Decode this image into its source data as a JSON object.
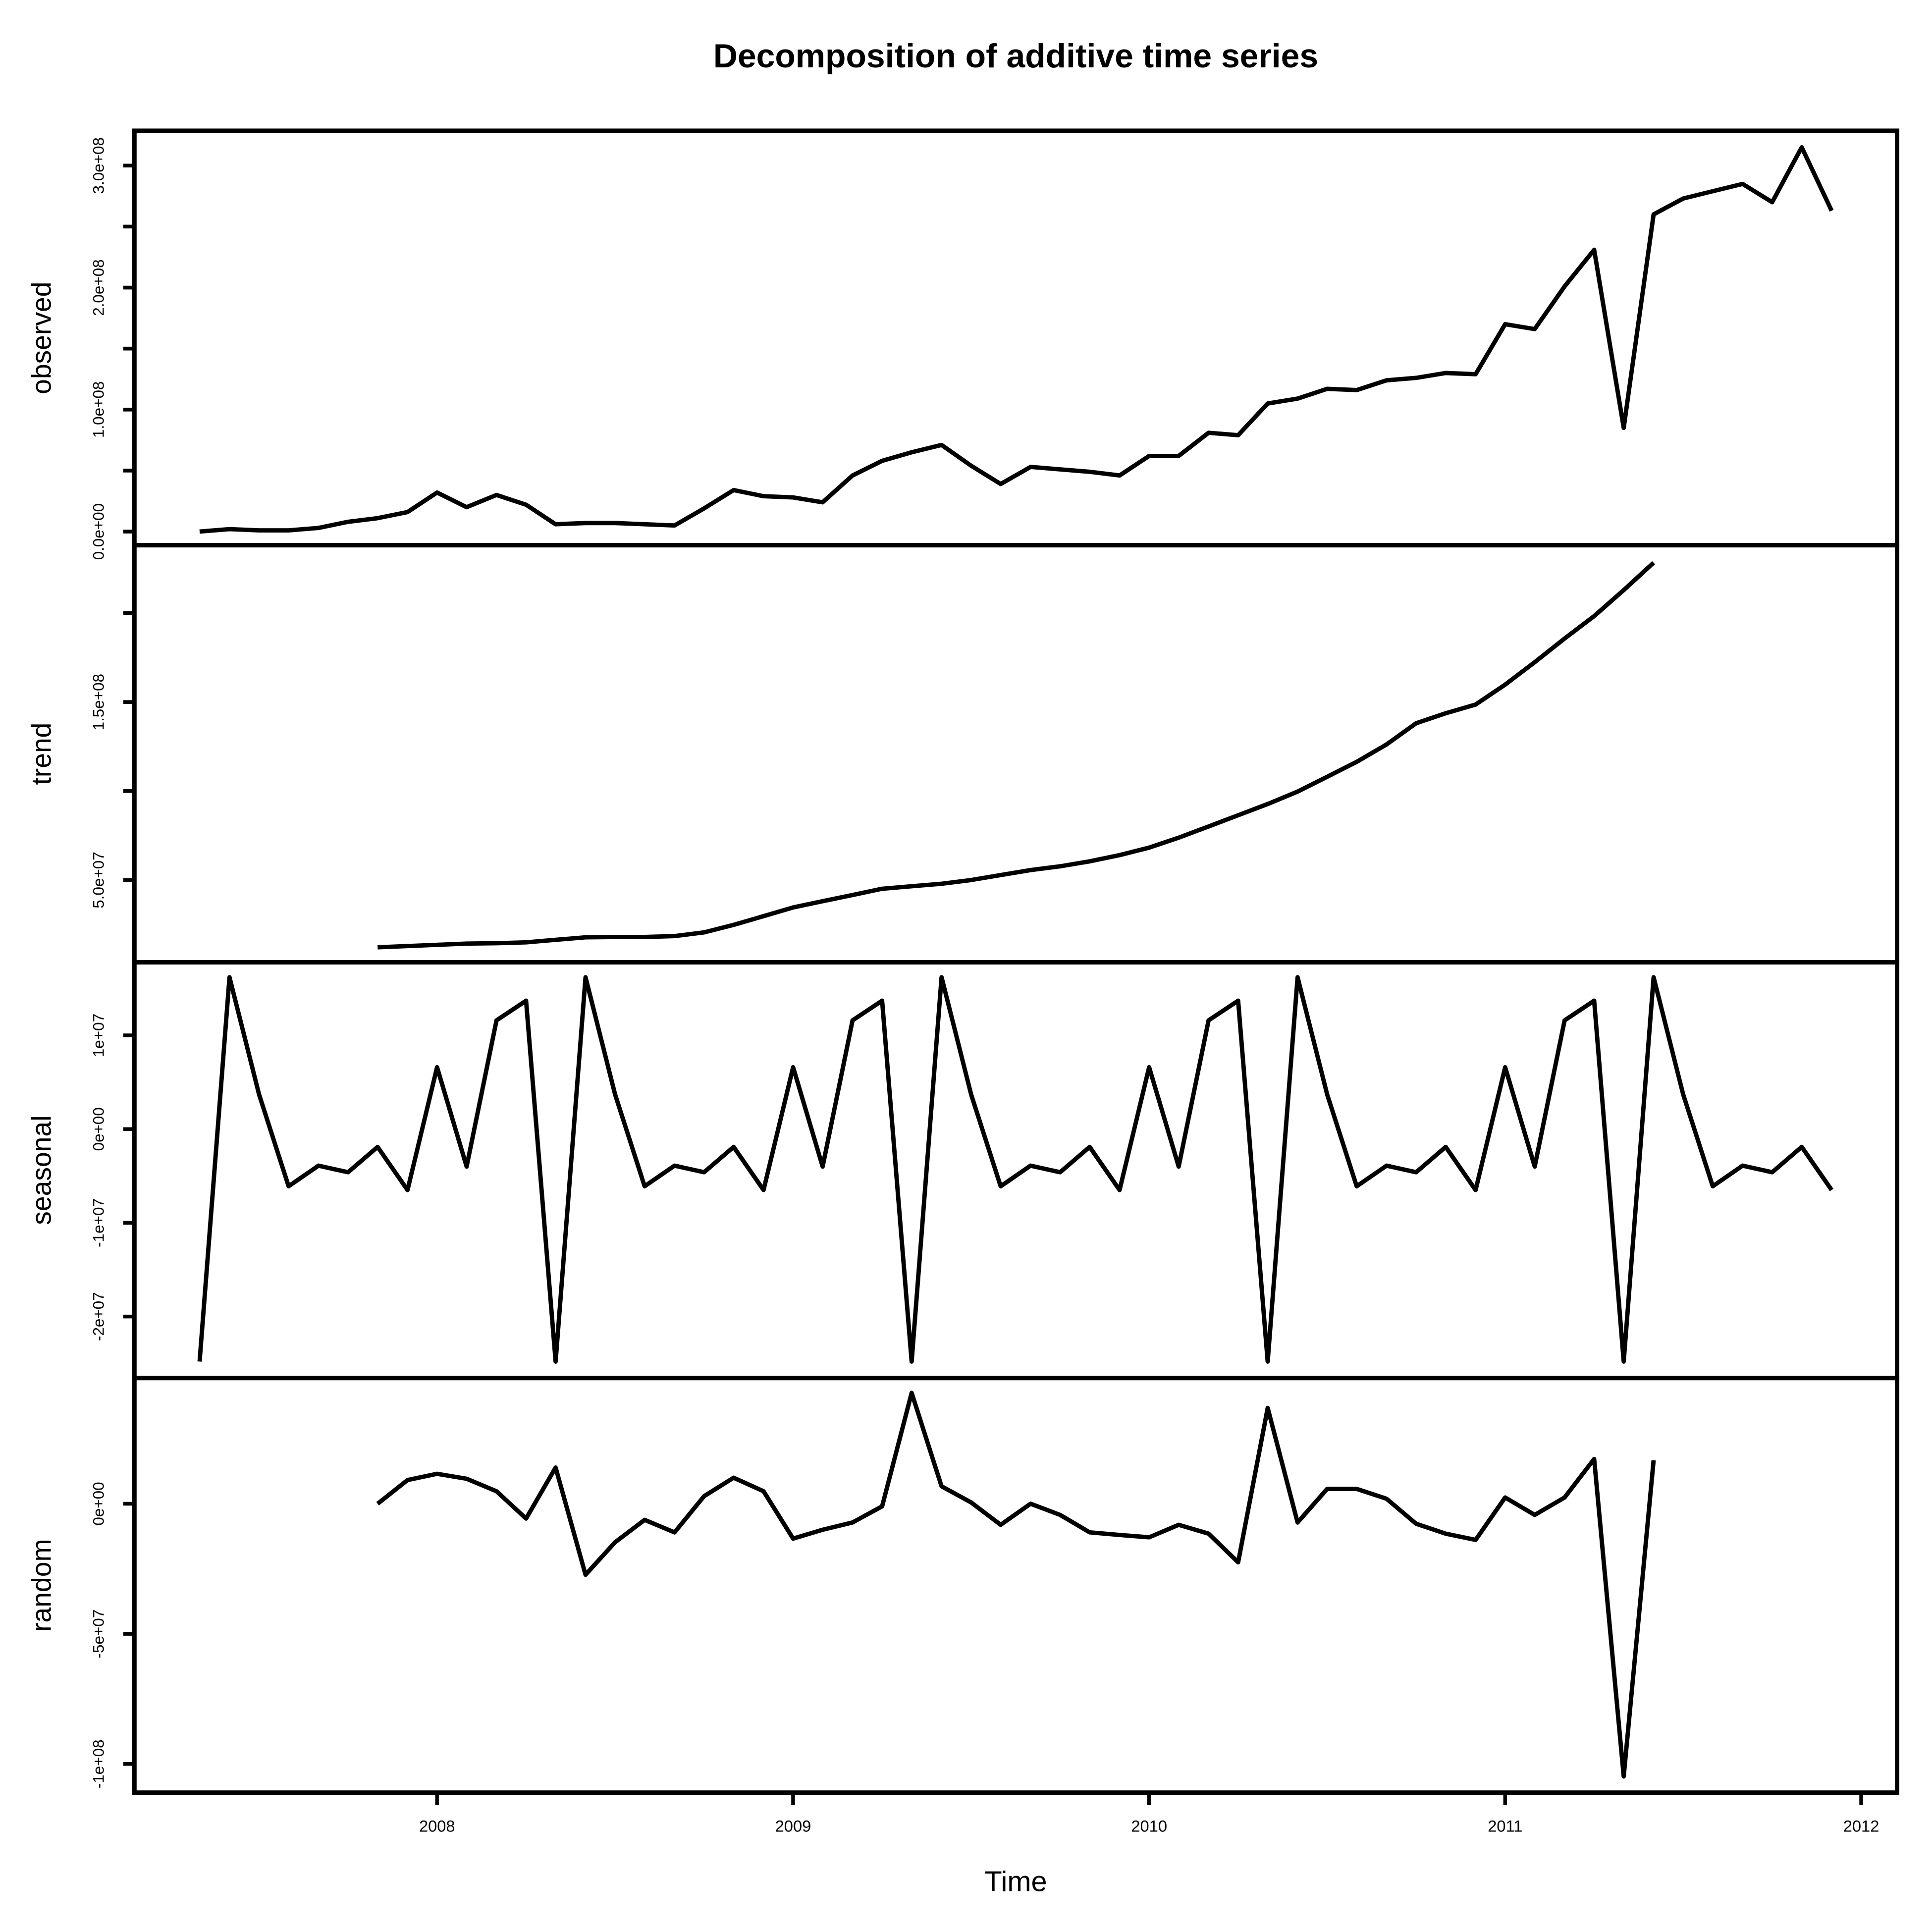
{
  "chart_data": [
    {
      "type": "line",
      "title": "Decomposition of additive time series",
      "ylabel": "observed",
      "color": "#000000",
      "x": [
        2007.333,
        2007.417,
        2007.5,
        2007.583,
        2007.667,
        2007.75,
        2007.833,
        2007.917,
        2008,
        2008.083,
        2008.167,
        2008.25,
        2008.333,
        2008.417,
        2008.5,
        2008.583,
        2008.667,
        2008.75,
        2008.833,
        2008.917,
        2009,
        2009.083,
        2009.167,
        2009.25,
        2009.333,
        2009.417,
        2009.5,
        2009.583,
        2009.667,
        2009.75,
        2009.833,
        2009.917,
        2010,
        2010.083,
        2010.167,
        2010.25,
        2010.333,
        2010.417,
        2010.5,
        2010.583,
        2010.667,
        2010.75,
        2010.833,
        2010.917,
        2011,
        2011.083,
        2011.167,
        2011.25,
        2011.333,
        2011.417,
        2011.5,
        2011.583,
        2011.667,
        2011.75,
        2011.833,
        2011.917
      ],
      "values": [
        0,
        2000000,
        1000000,
        1000000,
        3000000,
        8000000,
        11000000,
        16000000,
        32000000,
        20000000,
        30000000,
        22000000,
        6000000,
        7000000,
        7000000,
        6000000,
        5000000,
        19000000,
        34000000,
        29000000,
        28000000,
        24000000,
        46000000,
        58000000,
        65000000,
        71000000,
        54000000,
        39000000,
        53000000,
        51000000,
        49000000,
        46000000,
        62000000,
        62000000,
        81000000,
        79000000,
        105000000,
        109000000,
        117000000,
        116000000,
        124000000,
        126000000,
        130000000,
        129000000,
        170000000,
        166000000,
        201000000,
        231000000,
        85000000,
        260000000,
        273000000,
        279000000,
        285000000,
        270000000,
        315000000,
        263000000
      ],
      "xlim": [
        2007.15,
        2012.101
      ],
      "ylim": [
        -11200000,
        328600000
      ],
      "yticks": [
        {
          "value": 0,
          "label": "0.0e+00"
        },
        {
          "value": 100000000,
          "label": "1.0e+08"
        },
        {
          "value": 200000000,
          "label": "2.0e+08"
        },
        {
          "value": 300000000,
          "label": "3.0e+08"
        }
      ],
      "yminorticks": [
        50000000,
        150000000,
        250000000
      ]
    },
    {
      "type": "line",
      "ylabel": "trend",
      "color": "#000000",
      "x": [
        2007.333,
        2007.417,
        2007.5,
        2007.583,
        2007.667,
        2007.75,
        2007.833,
        2007.917,
        2008,
        2008.083,
        2008.167,
        2008.25,
        2008.333,
        2008.417,
        2008.5,
        2008.583,
        2008.667,
        2008.75,
        2008.833,
        2008.917,
        2009,
        2009.083,
        2009.167,
        2009.25,
        2009.333,
        2009.417,
        2009.5,
        2009.583,
        2009.667,
        2009.75,
        2009.833,
        2009.917,
        2010,
        2010.083,
        2010.167,
        2010.25,
        2010.333,
        2010.417,
        2010.5,
        2010.583,
        2010.667,
        2010.75,
        2010.833,
        2010.917,
        2011,
        2011.083,
        2011.167,
        2011.25,
        2011.333,
        2011.417,
        2011.5,
        2011.583,
        2011.667,
        2011.75,
        2011.833,
        2011.917
      ],
      "values": [
        null,
        null,
        null,
        null,
        null,
        null,
        12200000,
        12900000,
        13600000,
        14300000,
        14500000,
        15000000,
        16400000,
        17800000,
        18000000,
        18000000,
        18500000,
        20600000,
        24800000,
        29700000,
        34600000,
        38100000,
        41600000,
        45100000,
        46500000,
        47900000,
        50000000,
        52800000,
        55600000,
        57700000,
        60500000,
        64000000,
        68200000,
        73800000,
        80100000,
        86400000,
        92700000,
        99700000,
        108000000,
        116400000,
        126200000,
        138100000,
        143700000,
        148600000,
        159800000,
        172400000,
        185700000,
        198300000,
        212900000,
        228300000,
        null,
        null,
        null,
        null,
        null,
        null
      ],
      "xlim": [
        2007.15,
        2012.101
      ],
      "ylim": [
        3800000,
        238100000
      ],
      "yticks": [
        {
          "value": 50000000,
          "label": "5.0e+07"
        },
        {
          "value": 150000000,
          "label": "1.5e+08"
        }
      ],
      "yminorticks": [
        100000000,
        200000000
      ]
    },
    {
      "type": "line",
      "ylabel": "seasonal",
      "color": "#000000",
      "x": [
        2007.333,
        2007.417,
        2007.5,
        2007.583,
        2007.667,
        2007.75,
        2007.833,
        2007.917,
        2008,
        2008.083,
        2008.167,
        2008.25,
        2008.333,
        2008.417,
        2008.5,
        2008.583,
        2008.667,
        2008.75,
        2008.833,
        2008.917,
        2009,
        2009.083,
        2009.167,
        2009.25,
        2009.333,
        2009.417,
        2009.5,
        2009.583,
        2009.667,
        2009.75,
        2009.833,
        2009.917,
        2010,
        2010.083,
        2010.167,
        2010.25,
        2010.333,
        2010.417,
        2010.5,
        2010.583,
        2010.667,
        2010.75,
        2010.833,
        2010.917,
        2011,
        2011.083,
        2011.167,
        2011.25,
        2011.333,
        2011.417,
        2011.5,
        2011.583,
        2011.667,
        2011.75,
        2011.833,
        2011.917
      ],
      "values": [
        -24800000,
        16200000,
        3700000,
        -6100000,
        -3900000,
        -4600000,
        -1900000,
        -6500000,
        6600000,
        -4000000,
        11600000,
        13700000,
        -24800000,
        16200000,
        3700000,
        -6100000,
        -3900000,
        -4600000,
        -1900000,
        -6500000,
        6600000,
        -4000000,
        11600000,
        13700000,
        -24800000,
        16200000,
        3700000,
        -6100000,
        -3900000,
        -4600000,
        -1900000,
        -6500000,
        6600000,
        -4000000,
        11600000,
        13700000,
        -24800000,
        16200000,
        3700000,
        -6100000,
        -3900000,
        -4600000,
        -1900000,
        -6500000,
        6600000,
        -4000000,
        11600000,
        13700000,
        -24800000,
        16200000,
        3700000,
        -6100000,
        -3900000,
        -4600000,
        -1900000,
        -6500000
      ],
      "xlim": [
        2007.15,
        2012.101
      ],
      "ylim": [
        -26560000,
        17800000
      ],
      "yticks": [
        {
          "value": -20000000,
          "label": "-2e+07"
        },
        {
          "value": -10000000,
          "label": "-1e+07"
        },
        {
          "value": 0,
          "label": "0e+00"
        },
        {
          "value": 10000000,
          "label": "1e+07"
        }
      ]
    },
    {
      "type": "line",
      "ylabel": "random",
      "xlabel": "Time",
      "color": "#000000",
      "x": [
        2007.333,
        2007.417,
        2007.5,
        2007.583,
        2007.667,
        2007.75,
        2007.833,
        2007.917,
        2008,
        2008.083,
        2008.167,
        2008.25,
        2008.333,
        2008.417,
        2008.5,
        2008.583,
        2008.667,
        2008.75,
        2008.833,
        2008.917,
        2009,
        2009.083,
        2009.167,
        2009.25,
        2009.333,
        2009.417,
        2009.5,
        2009.583,
        2009.667,
        2009.75,
        2009.833,
        2009.917,
        2010,
        2010.083,
        2010.167,
        2010.25,
        2010.333,
        2010.417,
        2010.5,
        2010.583,
        2010.667,
        2010.75,
        2010.833,
        2010.917,
        2011,
        2011.083,
        2011.167,
        2011.25,
        2011.333,
        2011.417,
        2011.5,
        2011.583,
        2011.667,
        2011.75,
        2011.833,
        2011.917
      ],
      "values": [
        null,
        null,
        null,
        null,
        null,
        null,
        0,
        9100000,
        11500000,
        9600000,
        4800000,
        -5700000,
        13900000,
        -27300000,
        -14800000,
        -6200000,
        -11000000,
        2900000,
        10000000,
        4800000,
        -13400000,
        -10000000,
        -7200000,
        -1000000,
        42600000,
        6700000,
        500000,
        -8100000,
        0,
        -4300000,
        -11000000,
        -12000000,
        -12900000,
        -8100000,
        -11500000,
        -22500000,
        36800000,
        -7200000,
        5700000,
        5700000,
        1900000,
        -7700000,
        -11500000,
        -13900000,
        2400000,
        -4300000,
        2400000,
        17200000,
        -104800000,
        16700000,
        null,
        null,
        null,
        null,
        null,
        null
      ],
      "xlim": [
        2007.15,
        2012.101
      ],
      "ylim": [
        -111000000,
        48300000
      ],
      "yticks": [
        {
          "value": -100000000,
          "label": "-1e+08"
        },
        {
          "value": -50000000,
          "label": "-5e+07"
        },
        {
          "value": 0,
          "label": "0e+00"
        }
      ],
      "xticks": [
        2008,
        2009,
        2010,
        2011,
        2012
      ]
    }
  ]
}
